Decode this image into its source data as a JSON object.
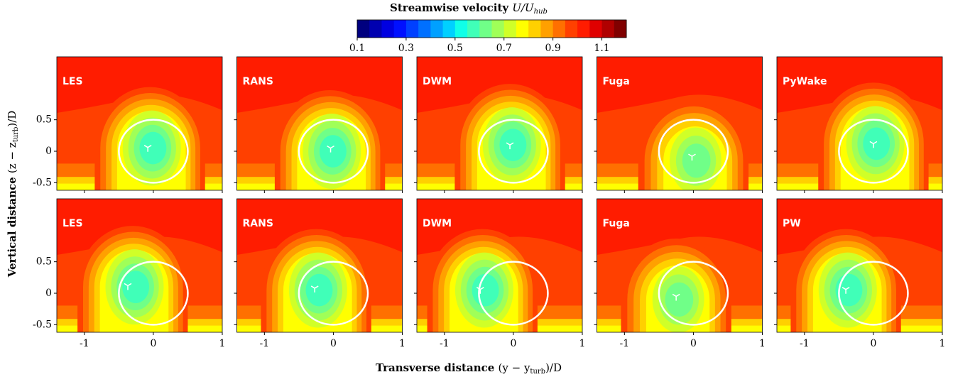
{
  "colorbar": {
    "title": "Streamwise velocity",
    "symbol": "U/U",
    "subscript": "hub",
    "lim": [
      0.1,
      1.2
    ],
    "ticks": [
      0.1,
      0.3,
      0.5,
      0.7,
      0.9,
      1.1
    ],
    "colors": [
      "#00007f",
      "#0000b0",
      "#0000e0",
      "#0010ff",
      "#0040ff",
      "#0070ff",
      "#00a0ff",
      "#00d0ff",
      "#10ffe8",
      "#40ffb8",
      "#70ff88",
      "#a0ff58",
      "#d0ff28",
      "#ffff00",
      "#ffd000",
      "#ffa000",
      "#ff7000",
      "#ff4000",
      "#ff1c00",
      "#e00000",
      "#b00000",
      "#800000"
    ]
  },
  "x_label": {
    "text": "Transverse distance",
    "math": "(y − y",
    "sub": "turb",
    "tail": ")/D"
  },
  "y_label": {
    "text": "Vertical distance",
    "math": "(z − z",
    "sub": "turb",
    "tail": ")/D"
  },
  "rotor": {
    "y": 0,
    "z": 0,
    "radius": 0.5
  },
  "chart_data": [
    {
      "type": "contour",
      "label": "LES",
      "hub": [
        -0.08,
        0.06
      ],
      "xlim": [
        -1.4,
        1
      ],
      "ylim": [
        -0.62,
        1.5
      ],
      "xticks": [
        -1,
        0,
        1
      ],
      "yticks": [
        0.5,
        0,
        -0.5
      ]
    },
    {
      "type": "contour",
      "label": "RANS",
      "hub": [
        -0.04,
        0.05
      ],
      "xlim": [
        -1.4,
        1
      ],
      "ylim": [
        -0.62,
        1.5
      ],
      "xticks": [
        -1,
        0,
        1
      ],
      "yticks": [
        0.5,
        0,
        -0.5
      ]
    },
    {
      "type": "contour",
      "label": "DWM",
      "hub": [
        -0.05,
        0.1
      ],
      "xlim": [
        -1.4,
        1
      ],
      "ylim": [
        -0.62,
        1.5
      ],
      "xticks": [
        -1,
        0,
        1
      ],
      "yticks": [
        0.5,
        0,
        -0.5
      ]
    },
    {
      "type": "contour",
      "label": "Fuga",
      "hub": [
        -0.02,
        -0.08
      ],
      "xlim": [
        -1.4,
        1
      ],
      "ylim": [
        -0.62,
        1.5
      ],
      "xticks": [
        -1,
        0,
        1
      ],
      "yticks": [
        0.5,
        0,
        -0.5
      ]
    },
    {
      "type": "contour",
      "label": "PyWake",
      "hub": [
        0,
        0.12
      ],
      "xlim": [
        -1.4,
        1
      ],
      "ylim": [
        -0.62,
        1.5
      ],
      "xticks": [
        -1,
        0,
        1
      ],
      "yticks": [
        0.5,
        0,
        -0.5
      ]
    },
    {
      "type": "contour",
      "label": "LES",
      "hub": [
        -0.37,
        0.12
      ],
      "xlim": [
        -1.4,
        1
      ],
      "ylim": [
        -0.62,
        1.5
      ],
      "xticks": [
        -1,
        0,
        1
      ],
      "yticks": [
        0.5,
        0,
        -0.5
      ]
    },
    {
      "type": "contour",
      "label": "RANS",
      "hub": [
        -0.27,
        0.08
      ],
      "xlim": [
        -1.4,
        1
      ],
      "ylim": [
        -0.62,
        1.5
      ],
      "xticks": [
        -1,
        0,
        1
      ],
      "yticks": [
        0.5,
        0,
        -0.5
      ]
    },
    {
      "type": "contour",
      "label": "DWM",
      "hub": [
        -0.48,
        0.06
      ],
      "xlim": [
        -1.4,
        1
      ],
      "ylim": [
        -0.62,
        1.5
      ],
      "xticks": [
        -1,
        0,
        1
      ],
      "yticks": [
        0.5,
        0,
        -0.5
      ]
    },
    {
      "type": "contour",
      "label": "Fuga",
      "hub": [
        -0.25,
        -0.05
      ],
      "xlim": [
        -1.4,
        1
      ],
      "ylim": [
        -0.62,
        1.5
      ],
      "xticks": [
        -1,
        0,
        1
      ],
      "yticks": [
        0.5,
        0,
        -0.5
      ]
    },
    {
      "type": "contour",
      "label": "PW",
      "hub": [
        -0.4,
        0.06
      ],
      "xlim": [
        -1.4,
        1
      ],
      "ylim": [
        -0.62,
        1.5
      ],
      "xticks": [
        -1,
        0,
        1
      ],
      "yticks": [
        0.5,
        0,
        -0.5
      ]
    }
  ]
}
